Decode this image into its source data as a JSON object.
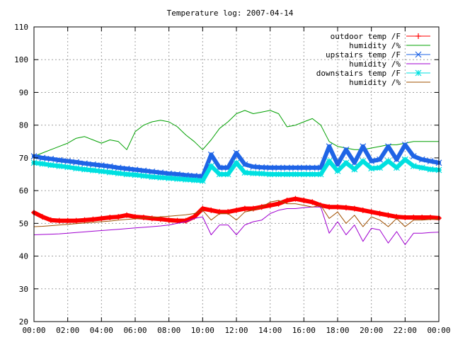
{
  "chart_data": {
    "type": "line",
    "title": "Temperature log: 2007-04-14",
    "xlabel": "",
    "ylabel": "",
    "xlim": [
      "00:00",
      "24:00"
    ],
    "ylim": [
      20,
      110
    ],
    "y_ticks": [
      20,
      30,
      40,
      50,
      60,
      70,
      80,
      90,
      100,
      110
    ],
    "x_ticks": [
      "00:00",
      "02:00",
      "04:00",
      "06:00",
      "08:00",
      "10:00",
      "12:00",
      "14:00",
      "16:00",
      "18:00",
      "20:00",
      "22:00",
      "00:00"
    ],
    "grid": true,
    "legend_position": "top-right",
    "x": [
      "00:00",
      "00:30",
      "01:00",
      "01:30",
      "02:00",
      "02:30",
      "03:00",
      "03:30",
      "04:00",
      "04:30",
      "05:00",
      "05:30",
      "06:00",
      "06:30",
      "07:00",
      "07:30",
      "08:00",
      "08:30",
      "09:00",
      "09:30",
      "10:00",
      "10:30",
      "11:00",
      "11:30",
      "12:00",
      "12:30",
      "13:00",
      "13:30",
      "14:00",
      "14:30",
      "15:00",
      "15:30",
      "16:00",
      "16:30",
      "17:00",
      "17:30",
      "18:00",
      "18:30",
      "19:00",
      "19:30",
      "20:00",
      "20:30",
      "21:00",
      "21:30",
      "22:00",
      "22:30",
      "23:00",
      "23:30",
      "24:00"
    ],
    "series": [
      {
        "name": "outdoor temp /F",
        "color": "#ff0000",
        "marker": "plus",
        "values": [
          53.3,
          52,
          51,
          50.8,
          50.8,
          50.8,
          51,
          51.2,
          51.5,
          51.8,
          52,
          52.5,
          52,
          51.8,
          51.5,
          51.3,
          51,
          50.8,
          50.8,
          52,
          54.5,
          54,
          53.5,
          53.5,
          54,
          54.5,
          54.5,
          55,
          55.5,
          56,
          57,
          57.5,
          57,
          56.5,
          55.5,
          55,
          55,
          54.8,
          54.5,
          54,
          53.5,
          53,
          52.5,
          52,
          51.8,
          51.8,
          51.8,
          51.8,
          51.6
        ]
      },
      {
        "name": "humidity /%",
        "color": "#00a000",
        "marker": "none",
        "values": [
          70.5,
          71.5,
          72.5,
          73.5,
          74.5,
          76,
          76.5,
          75.5,
          74.5,
          75.5,
          75,
          72.5,
          78,
          80,
          81,
          81.5,
          81,
          79.5,
          77,
          75,
          72.5,
          75.5,
          79,
          81,
          83.5,
          84.5,
          83.5,
          84,
          84.5,
          83.5,
          79.5,
          80,
          81,
          82,
          80,
          75,
          73.5,
          73,
          72.5,
          72.5,
          73,
          73.5,
          74,
          74,
          74.5,
          75,
          75,
          75,
          75
        ]
      },
      {
        "name": "upstairs temp /F",
        "color": "#1f64e6",
        "marker": "cross",
        "values": [
          70.5,
          70,
          69.7,
          69.3,
          69,
          68.7,
          68.3,
          68,
          67.7,
          67.4,
          67,
          66.7,
          66.4,
          66.1,
          65.8,
          65.5,
          65.2,
          65,
          64.7,
          64.5,
          64.3,
          71,
          67,
          67,
          71.5,
          68,
          67.3,
          67.1,
          67,
          67,
          67,
          67,
          67,
          67,
          67,
          73.5,
          68,
          72.5,
          68.5,
          73.5,
          69,
          69.5,
          73.5,
          69.5,
          74,
          70.5,
          69.5,
          69,
          68.5
        ]
      },
      {
        "name": "humidity /%",
        "color": "#a000d0",
        "marker": "none",
        "values": [
          46.5,
          46.6,
          46.7,
          46.8,
          47,
          47.2,
          47.4,
          47.6,
          47.8,
          48,
          48.2,
          48.4,
          48.6,
          48.8,
          49,
          49.2,
          49.5,
          50,
          50.5,
          51.5,
          52,
          46.5,
          49.5,
          49.5,
          46.5,
          49.5,
          50.5,
          51,
          53,
          54,
          54.5,
          54.5,
          54.8,
          55,
          55,
          47,
          50.5,
          46.5,
          49.5,
          44.5,
          48.5,
          48,
          44,
          47.5,
          43.5,
          47,
          47,
          47.2,
          47.3
        ]
      },
      {
        "name": "downstairs temp /F",
        "color": "#00e0e0",
        "marker": "star",
        "values": [
          68.5,
          68.2,
          67.8,
          67.5,
          67.2,
          66.8,
          66.5,
          66.2,
          65.9,
          65.6,
          65.3,
          65,
          64.8,
          64.5,
          64.2,
          64,
          63.8,
          63.6,
          63.4,
          63.2,
          63,
          67.5,
          65,
          65,
          68.5,
          65.5,
          65.3,
          65.2,
          65,
          65,
          65,
          65,
          65,
          65,
          65,
          69,
          66,
          68.5,
          66.5,
          69,
          66.8,
          67,
          69,
          67,
          69.5,
          67.5,
          67,
          66.5,
          66.3
        ]
      },
      {
        "name": "humidity /%",
        "color": "#a05000",
        "marker": "none",
        "values": [
          49,
          49.1,
          49.3,
          49.5,
          49.7,
          49.9,
          50.1,
          50.3,
          50.5,
          50.7,
          51,
          51.2,
          51.4,
          51.6,
          51.8,
          52,
          52.2,
          52.4,
          52.6,
          53,
          54,
          51,
          53,
          53,
          51,
          53.5,
          54,
          55,
          56.5,
          57,
          56,
          56,
          55.5,
          55,
          55.5,
          51.5,
          53.5,
          50,
          52.5,
          49,
          52,
          51,
          49,
          51.5,
          49,
          51,
          51,
          51.2,
          51.3
        ]
      }
    ]
  }
}
